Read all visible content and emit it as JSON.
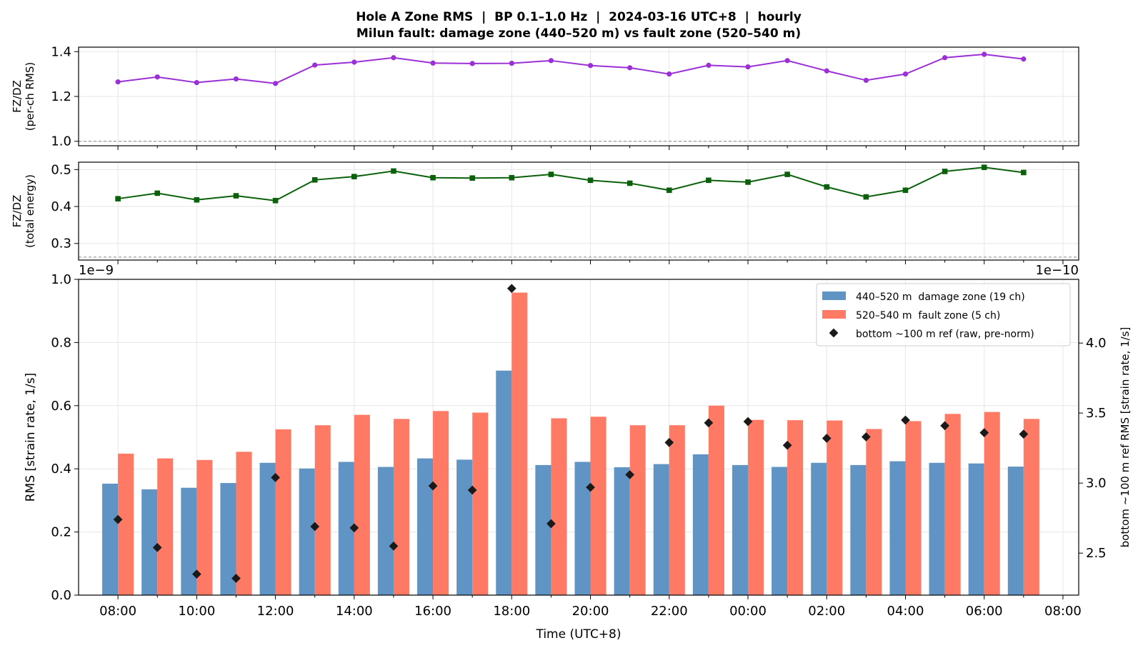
{
  "title_line1": "Hole A Zone RMS  |  BP 0.1–1.0 Hz  |  2024-03-16 UTC+8  |  hourly",
  "title_line2": "Milun fault: damage zone (440–520 m) vs fault zone (520–540 m)",
  "colors": {
    "damage": "#5f94c4",
    "fault": "#ff7a64",
    "ref": "#1a1a1a",
    "ratio1": "#9b30d6",
    "ratio2": "#0b610b"
  },
  "chart_data": [
    {
      "type": "line",
      "ylabel_lines": [
        "FZ/DZ",
        "(per-ch RMS)"
      ],
      "ylim": [
        0.98,
        1.42
      ],
      "yticks": [
        1.0,
        1.2,
        1.4
      ],
      "ytick_labels": [
        "1.0",
        "1.2",
        "1.4"
      ],
      "reference_line": 1.0,
      "grid": true,
      "x_hours": [
        0,
        1,
        2,
        3,
        4,
        5,
        6,
        7,
        8,
        9,
        10,
        11,
        12,
        13,
        14,
        15,
        16,
        17,
        18,
        19,
        20,
        21,
        22,
        23
      ],
      "values": [
        1.265,
        1.287,
        1.262,
        1.278,
        1.258,
        1.34,
        1.353,
        1.373,
        1.349,
        1.347,
        1.348,
        1.36,
        1.338,
        1.328,
        1.3,
        1.339,
        1.332,
        1.36,
        1.314,
        1.272,
        1.3,
        1.373,
        1.388,
        1.367
      ]
    },
    {
      "type": "line",
      "ylabel_lines": [
        "FZ/DZ",
        "(total energy)"
      ],
      "ylim": [
        0.255,
        0.52
      ],
      "yticks": [
        0.3,
        0.4,
        0.5
      ],
      "ytick_labels": [
        "0.3",
        "0.4",
        "0.5"
      ],
      "reference_line": 0.263,
      "grid": true,
      "x_hours": [
        0,
        1,
        2,
        3,
        4,
        5,
        6,
        7,
        8,
        9,
        10,
        11,
        12,
        13,
        14,
        15,
        16,
        17,
        18,
        19,
        20,
        21,
        22,
        23
      ],
      "values": [
        0.421,
        0.436,
        0.418,
        0.429,
        0.416,
        0.472,
        0.481,
        0.496,
        0.478,
        0.477,
        0.478,
        0.487,
        0.471,
        0.463,
        0.444,
        0.471,
        0.466,
        0.487,
        0.453,
        0.426,
        0.444,
        0.495,
        0.506,
        0.492
      ]
    },
    {
      "type": "bar",
      "xlabel": "Time (UTC+8)",
      "ylabel": "RMS  [strain rate, 1/s]",
      "y2label": "bottom ~100 m ref RMS  [strain rate, 1/s]",
      "ylim": [
        0,
        1.0
      ],
      "yticks": [
        0.0,
        0.2,
        0.4,
        0.6,
        0.8,
        1.0
      ],
      "ytick_labels": [
        "0.0",
        "0.2",
        "0.4",
        "0.6",
        "0.8",
        "1.0"
      ],
      "offset_text_left": "1e−9",
      "y2lim": [
        2.2,
        4.455
      ],
      "y2ticks": [
        2.5,
        3.0,
        3.5,
        4.0
      ],
      "y2tick_labels": [
        "2.5",
        "3.0",
        "3.5",
        "4.0"
      ],
      "offset_text_right": "1e−10",
      "x_range_hours": [
        -1,
        24.4
      ],
      "xticks_hours": [
        0,
        2,
        4,
        6,
        8,
        10,
        12,
        14,
        16,
        18,
        20,
        22,
        24
      ],
      "xtick_labels": [
        "08:00",
        "10:00",
        "12:00",
        "14:00",
        "16:00",
        "18:00",
        "20:00",
        "22:00",
        "00:00",
        "02:00",
        "04:00",
        "06:00",
        "08:00"
      ],
      "grid": true,
      "x_hours": [
        0,
        1,
        2,
        3,
        4,
        5,
        6,
        7,
        8,
        9,
        10,
        11,
        12,
        13,
        14,
        15,
        16,
        17,
        18,
        19,
        20,
        21,
        22,
        23
      ],
      "series": [
        {
          "name": "440–520 m  damage zone (19 ch)",
          "values": [
            0.353,
            0.335,
            0.34,
            0.355,
            0.419,
            0.401,
            0.422,
            0.406,
            0.433,
            0.429,
            0.711,
            0.412,
            0.422,
            0.405,
            0.415,
            0.446,
            0.412,
            0.406,
            0.419,
            0.412,
            0.424,
            0.419,
            0.417,
            0.407
          ]
        },
        {
          "name": "520–540 m  fault zone (5 ch)",
          "values": [
            0.448,
            0.433,
            0.428,
            0.454,
            0.525,
            0.538,
            0.571,
            0.558,
            0.583,
            0.578,
            0.958,
            0.56,
            0.565,
            0.538,
            0.538,
            0.6,
            0.555,
            0.554,
            0.553,
            0.526,
            0.551,
            0.574,
            0.58,
            0.558
          ]
        },
        {
          "name": "bottom ~100 m ref (raw, pre-norm)",
          "axis": "right",
          "values": [
            2.74,
            2.54,
            2.35,
            2.32,
            3.04,
            2.69,
            2.68,
            2.55,
            2.98,
            2.95,
            4.39,
            2.71,
            2.97,
            3.06,
            3.29,
            3.43,
            3.44,
            3.27,
            3.32,
            3.33,
            3.45,
            3.41,
            3.36,
            3.35
          ]
        }
      ],
      "legend_position": "upper right"
    }
  ]
}
